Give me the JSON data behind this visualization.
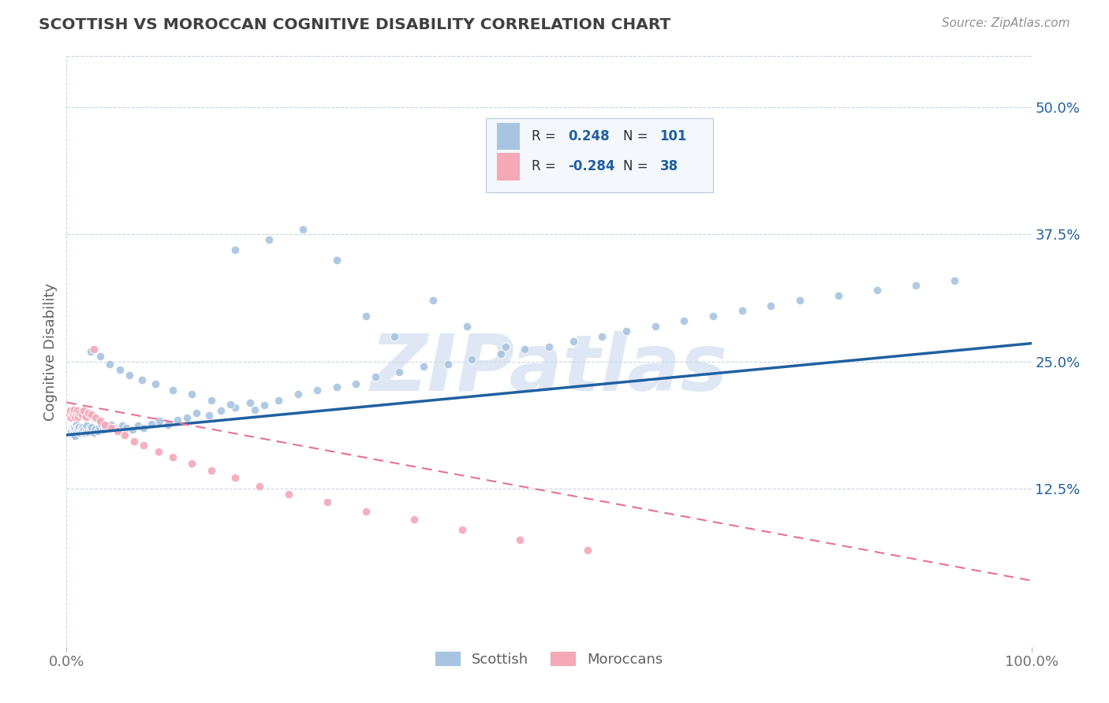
{
  "title": "SCOTTISH VS MOROCCAN COGNITIVE DISABILITY CORRELATION CHART",
  "source": "Source: ZipAtlas.com",
  "ylabel": "Cognitive Disability",
  "xlim": [
    0.0,
    1.0
  ],
  "ylim": [
    -0.03,
    0.55
  ],
  "x_ticks": [
    0.0,
    1.0
  ],
  "x_tick_labels": [
    "0.0%",
    "100.0%"
  ],
  "y_ticks": [
    0.125,
    0.25,
    0.375,
    0.5
  ],
  "y_tick_labels": [
    "12.5%",
    "25.0%",
    "37.5%",
    "50.0%"
  ],
  "scottish_R": 0.248,
  "scottish_N": 101,
  "moroccan_R": -0.284,
  "moroccan_N": 38,
  "scottish_color": "#a8c4e0",
  "moroccan_color": "#f4a8b8",
  "scottish_line_color": "#2060a0",
  "moroccan_line_color": "#e87090",
  "watermark_text": "ZIPatlas",
  "watermark_color": "#c8d8ec",
  "background_color": "#ffffff",
  "grid_color": "#c8d4e4",
  "title_color": "#404040",
  "source_color": "#909090",
  "scottish_x": [
    0.004,
    0.005,
    0.006,
    0.006,
    0.007,
    0.007,
    0.008,
    0.008,
    0.009,
    0.009,
    0.01,
    0.01,
    0.011,
    0.012,
    0.013,
    0.014,
    0.015,
    0.016,
    0.017,
    0.018,
    0.019,
    0.02,
    0.021,
    0.022,
    0.024,
    0.025,
    0.026,
    0.028,
    0.03,
    0.032,
    0.034,
    0.036,
    0.038,
    0.04,
    0.043,
    0.046,
    0.05,
    0.054,
    0.058,
    0.062,
    0.068,
    0.074,
    0.08,
    0.088,
    0.096,
    0.105,
    0.115,
    0.125,
    0.135,
    0.148,
    0.16,
    0.175,
    0.19,
    0.205,
    0.22,
    0.24,
    0.26,
    0.28,
    0.3,
    0.32,
    0.345,
    0.37,
    0.395,
    0.42,
    0.45,
    0.475,
    0.5,
    0.525,
    0.555,
    0.58,
    0.61,
    0.64,
    0.67,
    0.7,
    0.73,
    0.76,
    0.8,
    0.84,
    0.88,
    0.92,
    0.175,
    0.21,
    0.245,
    0.28,
    0.31,
    0.34,
    0.38,
    0.415,
    0.455,
    0.025,
    0.035,
    0.045,
    0.055,
    0.065,
    0.078,
    0.092,
    0.11,
    0.13,
    0.15,
    0.17,
    0.195
  ],
  "scottish_y": [
    0.18,
    0.182,
    0.178,
    0.185,
    0.183,
    0.179,
    0.186,
    0.181,
    0.184,
    0.177,
    0.188,
    0.182,
    0.185,
    0.183,
    0.186,
    0.18,
    0.184,
    0.182,
    0.186,
    0.183,
    0.18,
    0.184,
    0.187,
    0.181,
    0.185,
    0.183,
    0.186,
    0.18,
    0.184,
    0.182,
    0.186,
    0.189,
    0.183,
    0.186,
    0.184,
    0.188,
    0.185,
    0.183,
    0.187,
    0.185,
    0.183,
    0.187,
    0.185,
    0.189,
    0.192,
    0.188,
    0.193,
    0.195,
    0.2,
    0.197,
    0.202,
    0.205,
    0.21,
    0.207,
    0.212,
    0.218,
    0.222,
    0.225,
    0.228,
    0.235,
    0.24,
    0.245,
    0.248,
    0.252,
    0.258,
    0.262,
    0.265,
    0.27,
    0.275,
    0.28,
    0.285,
    0.29,
    0.295,
    0.3,
    0.305,
    0.31,
    0.315,
    0.32,
    0.325,
    0.33,
    0.36,
    0.37,
    0.38,
    0.35,
    0.295,
    0.275,
    0.31,
    0.285,
    0.265,
    0.26,
    0.255,
    0.248,
    0.242,
    0.237,
    0.232,
    0.228,
    0.222,
    0.218,
    0.212,
    0.208,
    0.203
  ],
  "moroccan_x": [
    0.003,
    0.004,
    0.005,
    0.006,
    0.007,
    0.008,
    0.009,
    0.01,
    0.011,
    0.012,
    0.014,
    0.016,
    0.018,
    0.02,
    0.023,
    0.026,
    0.03,
    0.035,
    0.04,
    0.046,
    0.053,
    0.06,
    0.07,
    0.08,
    0.095,
    0.11,
    0.13,
    0.15,
    0.175,
    0.2,
    0.23,
    0.27,
    0.31,
    0.36,
    0.41,
    0.47,
    0.54,
    0.028
  ],
  "moroccan_y": [
    0.198,
    0.202,
    0.195,
    0.2,
    0.197,
    0.203,
    0.196,
    0.199,
    0.202,
    0.196,
    0.2,
    0.198,
    0.202,
    0.196,
    0.2,
    0.198,
    0.195,
    0.192,
    0.188,
    0.185,
    0.182,
    0.178,
    0.172,
    0.168,
    0.162,
    0.156,
    0.15,
    0.143,
    0.136,
    0.128,
    0.12,
    0.112,
    0.103,
    0.095,
    0.085,
    0.075,
    0.065,
    0.262
  ],
  "scottish_line_x0": 0.0,
  "scottish_line_y0": 0.178,
  "scottish_line_x1": 1.0,
  "scottish_line_y1": 0.268,
  "moroccan_line_x0": 0.0,
  "moroccan_line_y0": 0.21,
  "moroccan_line_x1": 1.0,
  "moroccan_line_y1": 0.035
}
